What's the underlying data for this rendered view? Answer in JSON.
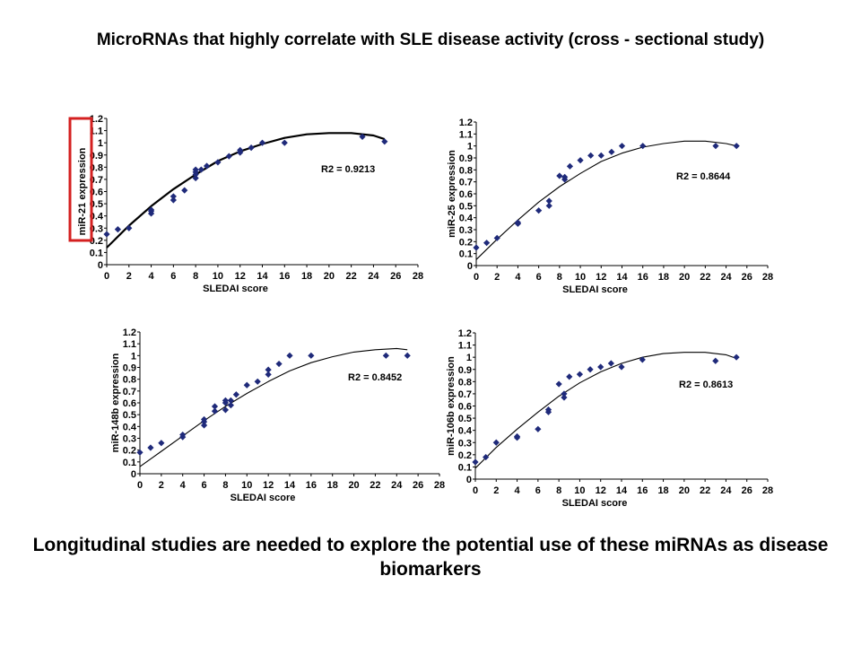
{
  "title": "MicroRNAs that highly correlate with SLE disease activity (cross - sectional study)",
  "footer": "Longitudinal studies are needed to explore the potential use of these miRNAs as disease biomarkers",
  "colors": {
    "points": "#1f2a7a",
    "curve": "#000000",
    "highlight": "#d42020"
  },
  "chart_data": [
    {
      "type": "scatter",
      "xlabel": "SLEDAI score",
      "ylabel": "miR-21 expression",
      "xlim": [
        0,
        28
      ],
      "ylim": [
        0,
        1.2
      ],
      "xticks": [
        "0",
        "2",
        "4",
        "6",
        "8",
        "10",
        "12",
        "14",
        "16",
        "18",
        "20",
        "22",
        "24",
        "26",
        "28"
      ],
      "yticks": [
        "0",
        "0.1",
        "0.2",
        "0.3",
        "0.4",
        "0.5",
        "0.6",
        "0.7",
        "0.8",
        "0.9",
        "1",
        "1.1",
        "1.2"
      ],
      "r2_label": "R2 = 0.9213",
      "x": [
        0,
        1,
        2,
        4,
        4,
        4,
        6,
        6,
        7,
        8,
        8,
        8,
        8,
        8.5,
        9,
        10,
        11,
        12,
        12,
        13,
        14,
        16,
        23,
        25
      ],
      "y": [
        0.25,
        0.29,
        0.3,
        0.42,
        0.44,
        0.45,
        0.53,
        0.56,
        0.61,
        0.71,
        0.74,
        0.76,
        0.78,
        0.78,
        0.81,
        0.84,
        0.89,
        0.92,
        0.94,
        0.96,
        1.0,
        1.0,
        1.05,
        1.01
      ],
      "trend_x": [
        0,
        2,
        4,
        6,
        8,
        10,
        12,
        14,
        16,
        18,
        20,
        22,
        24,
        25
      ],
      "trend_y": [
        0.14,
        0.32,
        0.48,
        0.62,
        0.74,
        0.85,
        0.93,
        0.99,
        1.04,
        1.07,
        1.08,
        1.08,
        1.06,
        1.03
      ]
    },
    {
      "type": "scatter",
      "xlabel": "SLEDAI score",
      "ylabel": "miR-25 expression",
      "xlim": [
        0,
        28
      ],
      "ylim": [
        0,
        1.2
      ],
      "xticks": [
        "0",
        "2",
        "4",
        "6",
        "8",
        "10",
        "12",
        "14",
        "16",
        "18",
        "20",
        "22",
        "24",
        "26",
        "28"
      ],
      "yticks": [
        "0",
        "0.1",
        "0.2",
        "0.3",
        "0.4",
        "0.5",
        "0.6",
        "0.7",
        "0.8",
        "0.9",
        "1",
        "1.1",
        "1.2"
      ],
      "r2_label": "R2 = 0.8644",
      "x": [
        0,
        1,
        2,
        4,
        4,
        6,
        7,
        7,
        8,
        8.5,
        8.5,
        9,
        10,
        11,
        12,
        13,
        14,
        16,
        23,
        25
      ],
      "y": [
        0.15,
        0.19,
        0.23,
        0.35,
        0.36,
        0.46,
        0.5,
        0.54,
        0.75,
        0.74,
        0.72,
        0.83,
        0.88,
        0.92,
        0.92,
        0.95,
        1.0,
        1.0,
        1.0,
        1.0
      ],
      "trend_x": [
        0,
        2,
        4,
        6,
        8,
        10,
        12,
        14,
        16,
        18,
        20,
        22,
        24,
        25
      ],
      "trend_y": [
        0.05,
        0.22,
        0.38,
        0.53,
        0.66,
        0.77,
        0.87,
        0.94,
        0.99,
        1.02,
        1.04,
        1.04,
        1.02,
        1.0
      ]
    },
    {
      "type": "scatter",
      "xlabel": "SLEDAI score",
      "ylabel": "miR-148b expression",
      "xlim": [
        0,
        28
      ],
      "ylim": [
        0,
        1.2
      ],
      "xticks": [
        "0",
        "2",
        "4",
        "6",
        "8",
        "10",
        "12",
        "14",
        "16",
        "18",
        "20",
        "22",
        "24",
        "26",
        "28"
      ],
      "yticks": [
        "0",
        "0.1",
        "0.2",
        "0.3",
        "0.4",
        "0.5",
        "0.6",
        "0.7",
        "0.8",
        "0.9",
        "1",
        "1.1",
        "1.2"
      ],
      "r2_label": "R2 = 0.8452",
      "x": [
        0,
        1,
        2,
        4,
        4,
        6,
        6,
        6,
        7,
        7,
        8,
        8,
        8,
        8.5,
        8.5,
        9,
        10,
        11,
        12,
        12,
        13,
        14,
        16,
        23,
        25
      ],
      "y": [
        0.18,
        0.22,
        0.26,
        0.31,
        0.33,
        0.41,
        0.44,
        0.46,
        0.53,
        0.57,
        0.54,
        0.6,
        0.62,
        0.58,
        0.62,
        0.67,
        0.75,
        0.78,
        0.84,
        0.88,
        0.93,
        1.0,
        1.0,
        1.0,
        1.0
      ],
      "trend_x": [
        0,
        2,
        4,
        6,
        8,
        10,
        12,
        14,
        16,
        18,
        20,
        22,
        24,
        25
      ],
      "trend_y": [
        0.06,
        0.19,
        0.32,
        0.45,
        0.57,
        0.68,
        0.78,
        0.87,
        0.94,
        0.99,
        1.03,
        1.05,
        1.06,
        1.05
      ]
    },
    {
      "type": "scatter",
      "xlabel": "SLEDAI score",
      "ylabel": "miR-106b expression",
      "xlim": [
        0,
        28
      ],
      "ylim": [
        0,
        1.2
      ],
      "xticks": [
        "0",
        "2",
        "4",
        "6",
        "8",
        "10",
        "12",
        "14",
        "16",
        "18",
        "20",
        "22",
        "24",
        "26",
        "28"
      ],
      "yticks": [
        "0",
        "0.1",
        "0.2",
        "0.3",
        "0.4",
        "0.5",
        "0.6",
        "0.7",
        "0.8",
        "0.9",
        "1",
        "1.1",
        "1.2"
      ],
      "r2_label": "R2 = 0.8613",
      "x": [
        0,
        1,
        2,
        4,
        4,
        6,
        7,
        7,
        8,
        8.5,
        8.5,
        9,
        10,
        11,
        12,
        13,
        14,
        16,
        23,
        25
      ],
      "y": [
        0.14,
        0.18,
        0.3,
        0.34,
        0.35,
        0.41,
        0.55,
        0.57,
        0.78,
        0.7,
        0.67,
        0.84,
        0.86,
        0.9,
        0.92,
        0.95,
        0.92,
        0.98,
        0.97,
        1.0
      ],
      "trend_x": [
        0,
        2,
        4,
        6,
        8,
        10,
        12,
        14,
        16,
        18,
        20,
        22,
        24,
        25
      ],
      "trend_y": [
        0.09,
        0.26,
        0.41,
        0.55,
        0.68,
        0.79,
        0.88,
        0.95,
        1.0,
        1.03,
        1.04,
        1.04,
        1.02,
        0.99
      ]
    }
  ]
}
